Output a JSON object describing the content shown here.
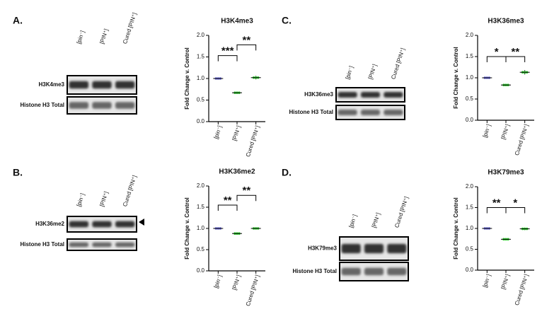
{
  "panels": [
    {
      "label": "A.",
      "blot": {
        "lanes": [
          "[pin⁻]",
          "[PIN⁺]",
          "Cured [PIN⁺]"
        ],
        "rows": [
          "H3K4me3",
          "Histone H3 Total"
        ]
      }
    },
    {
      "label": "B.",
      "blot": {
        "lanes": [
          "[pin⁻]",
          "[PIN⁺]",
          "Cured [PIN⁺]"
        ],
        "rows": [
          "H3K36me2",
          "Histone H3 Total"
        ]
      }
    },
    {
      "label": "C.",
      "blot": {
        "lanes": [
          "[pin⁻]",
          "[PIN⁺]",
          "Cured [PIN⁺]"
        ],
        "rows": [
          "H3K36me3",
          "Histone H3 Total"
        ]
      }
    },
    {
      "label": "D.",
      "blot": {
        "lanes": [
          "[pin⁻]",
          "[PIN⁺]",
          "Cured [PIN⁺]"
        ],
        "rows": [
          "H3K79me3",
          "Histone H3 Total"
        ]
      }
    }
  ],
  "chart_data": [
    {
      "type": "dot",
      "title": "H3K4me3",
      "ylabel": "Fold Change v. Control",
      "categories": [
        "[pin⁻]",
        "[PIN⁺]",
        "Cured [PIN⁺]"
      ],
      "values": [
        1.0,
        0.67,
        1.02
      ],
      "errors": [
        0.01,
        0.02,
        0.04
      ],
      "colors": [
        "#6a6ad8",
        "#33cc33",
        "#33cc33"
      ],
      "ylim": [
        0,
        2
      ],
      "yticks": [
        {
          "value": 0,
          "label": "0.0"
        },
        0.5,
        {
          "value": 1,
          "label": "1.0"
        },
        1.5,
        {
          "value": 2,
          "label": "2.0"
        }
      ],
      "annotations": [
        "***",
        "**"
      ]
    },
    {
      "type": "dot",
      "title": "H3K36me2",
      "ylabel": "Fold Change v. Control",
      "categories": [
        "[pin⁻]",
        "[PIN⁺]",
        "Cured [PIN⁺]"
      ],
      "values": [
        1.0,
        0.88,
        1.0
      ],
      "errors": [
        0.01,
        0.01,
        0.01
      ],
      "colors": [
        "#6a6ad8",
        "#33cc33",
        "#33cc33"
      ],
      "ylim": [
        0,
        2
      ],
      "yticks": [
        {
          "value": 0,
          "label": "0.0"
        },
        0.5,
        {
          "value": 1,
          "label": "1.0"
        },
        1.5,
        {
          "value": 2,
          "label": "2.0"
        }
      ],
      "annotations": [
        "**",
        "**"
      ]
    },
    {
      "type": "dot",
      "title": "H3K36me3",
      "ylabel": "Fold Change v. Control",
      "categories": [
        "[pin⁻]",
        "[PIN⁺]",
        "Cured [PIN⁺]"
      ],
      "values": [
        1.0,
        0.83,
        1.13
      ],
      "errors": [
        0.01,
        0.02,
        0.05
      ],
      "colors": [
        "#6a6ad8",
        "#33cc33",
        "#33cc33"
      ],
      "ylim": [
        0,
        2
      ],
      "yticks": [
        {
          "value": 0,
          "label": "0.0"
        },
        0.5,
        {
          "value": 1,
          "label": "1.0"
        },
        1.5,
        {
          "value": 2,
          "label": "2.0"
        }
      ],
      "annotations": [
        "*",
        "**"
      ]
    },
    {
      "type": "dot",
      "title": "H3K79me3",
      "ylabel": "Fold Change v. Control",
      "categories": [
        "[pin⁻]",
        "[PIN⁺]",
        "Cured [PIN⁺]"
      ],
      "values": [
        1.0,
        0.74,
        0.99
      ],
      "errors": [
        0.01,
        0.02,
        0.03
      ],
      "colors": [
        "#6a6ad8",
        "#33cc33",
        "#33cc33"
      ],
      "ylim": [
        0,
        2
      ],
      "yticks": [
        {
          "value": 0,
          "label": "0.0"
        },
        0.5,
        {
          "value": 1,
          "label": "1.0"
        },
        1.5,
        {
          "value": 2,
          "label": "2.0"
        }
      ],
      "annotations": [
        "**",
        "*"
      ]
    }
  ]
}
